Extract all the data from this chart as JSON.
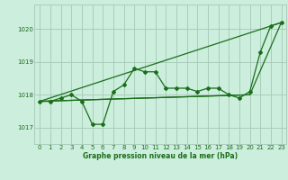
{
  "title": "Graphe pression niveau de la mer (hPa)",
  "background_color": "#cceedd",
  "grid_color": "#aaccbb",
  "line_color": "#1a6e1a",
  "xlim": [
    -0.5,
    23.5
  ],
  "ylim": [
    1016.5,
    1020.75
  ],
  "yticks": [
    1017,
    1018,
    1019,
    1020
  ],
  "xticks": [
    0,
    1,
    2,
    3,
    4,
    5,
    6,
    7,
    8,
    9,
    10,
    11,
    12,
    13,
    14,
    15,
    16,
    17,
    18,
    19,
    20,
    21,
    22,
    23
  ],
  "series1_x": [
    0,
    1,
    2,
    3,
    4,
    5,
    6,
    7,
    8,
    9,
    10,
    11,
    12,
    13,
    14,
    15,
    16,
    17,
    18,
    19,
    20,
    21,
    22,
    23
  ],
  "series1_y": [
    1017.8,
    1017.8,
    1017.9,
    1018.0,
    1017.8,
    1017.1,
    1017.1,
    1018.1,
    1018.3,
    1018.8,
    1018.7,
    1018.7,
    1018.2,
    1018.2,
    1018.2,
    1018.1,
    1018.2,
    1018.2,
    1018.0,
    1017.9,
    1018.1,
    1019.3,
    1020.1,
    1020.2
  ],
  "series2_x": [
    0,
    23
  ],
  "series2_y": [
    1017.8,
    1020.2
  ],
  "series3_x": [
    0,
    20,
    23
  ],
  "series3_y": [
    1017.8,
    1018.0,
    1020.2
  ],
  "series4_x": [
    0,
    20
  ],
  "series4_y": [
    1017.8,
    1018.0
  ]
}
